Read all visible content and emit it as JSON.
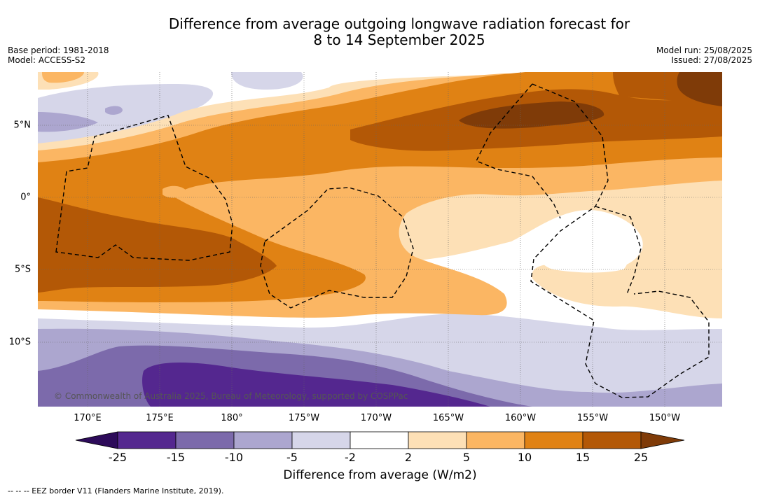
{
  "title_line1": "Difference from average outgoing longwave radiation forecast for",
  "title_line2": "8 to 14 September 2025",
  "base_period": "Base period: 1981-2018",
  "model": "Model: ACCESS-S2",
  "model_run": "Model run: 25/08/2025",
  "issued": "Issued: 27/08/2025",
  "copyright": "© Commonwealth of Australia 2025, Bureau of Meteorology, supported by COSPPac",
  "lon_labels": [
    "170°E",
    "175°E",
    "180°",
    "175°W",
    "170°W",
    "165°W",
    "160°W",
    "155°W",
    "150°W"
  ],
  "lat_labels": [
    "5°N",
    "0°",
    "5°S",
    "10°S"
  ],
  "colorbar": {
    "label": "Difference from average (W/m2)",
    "ticks": [
      "-25",
      "-15",
      "-10",
      "-5",
      "-2",
      "2",
      "5",
      "10",
      "15",
      "25"
    ],
    "colors": [
      "#2d0b5a",
      "#54278f",
      "#7c6aab",
      "#aca6cf",
      "#d6d6e9",
      "#ffffff",
      "#fde0b6",
      "#fbb663",
      "#e08214",
      "#b35806",
      "#7f3b08"
    ]
  },
  "legend_note": "--  --  -- EEZ border V11 (Flanders Marine Institute, 2019)."
}
